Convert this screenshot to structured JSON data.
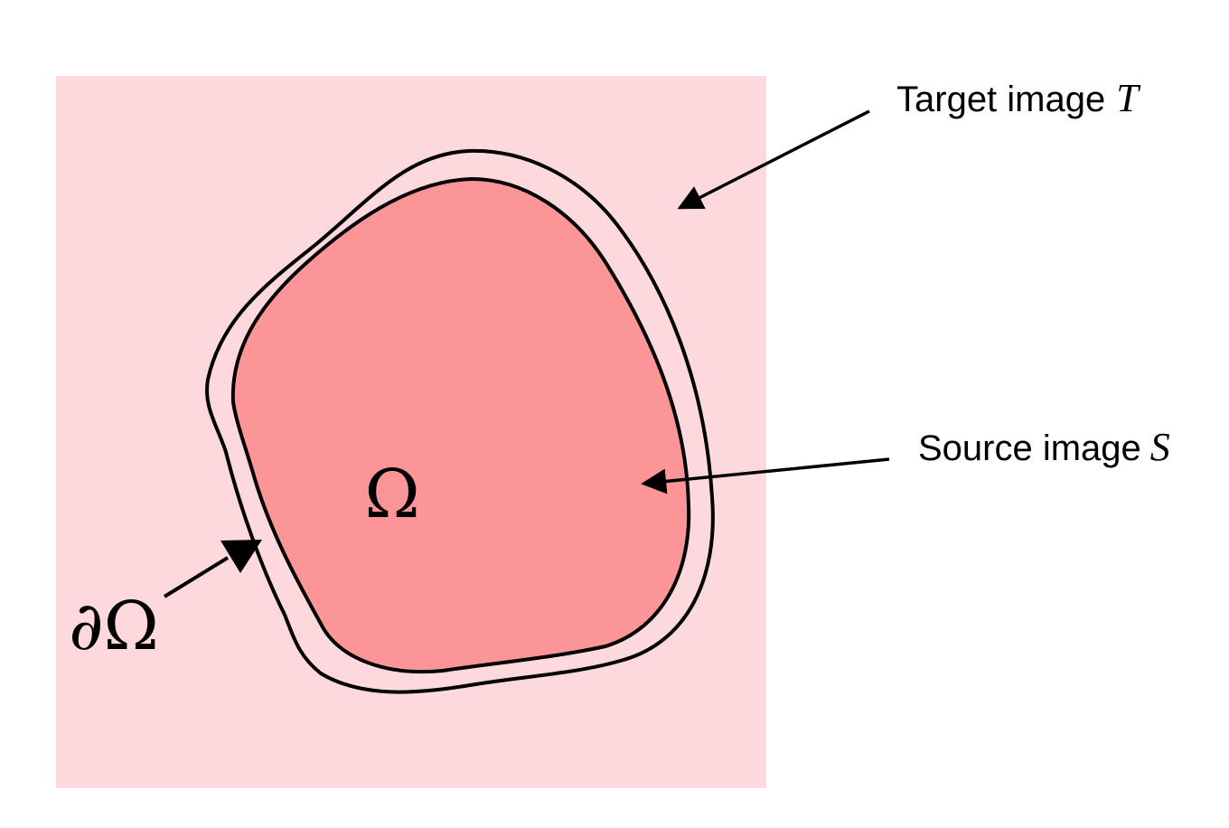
{
  "colors": {
    "target_fill": "#fdd9dd",
    "source_fill": "#fb9597",
    "stroke": "#000000",
    "background": "#ffffff"
  },
  "labels": {
    "target_text": "Target image",
    "target_symbol": "T",
    "source_text": "Source image",
    "source_symbol": "S",
    "region": "Ω",
    "boundary": "∂Ω"
  }
}
